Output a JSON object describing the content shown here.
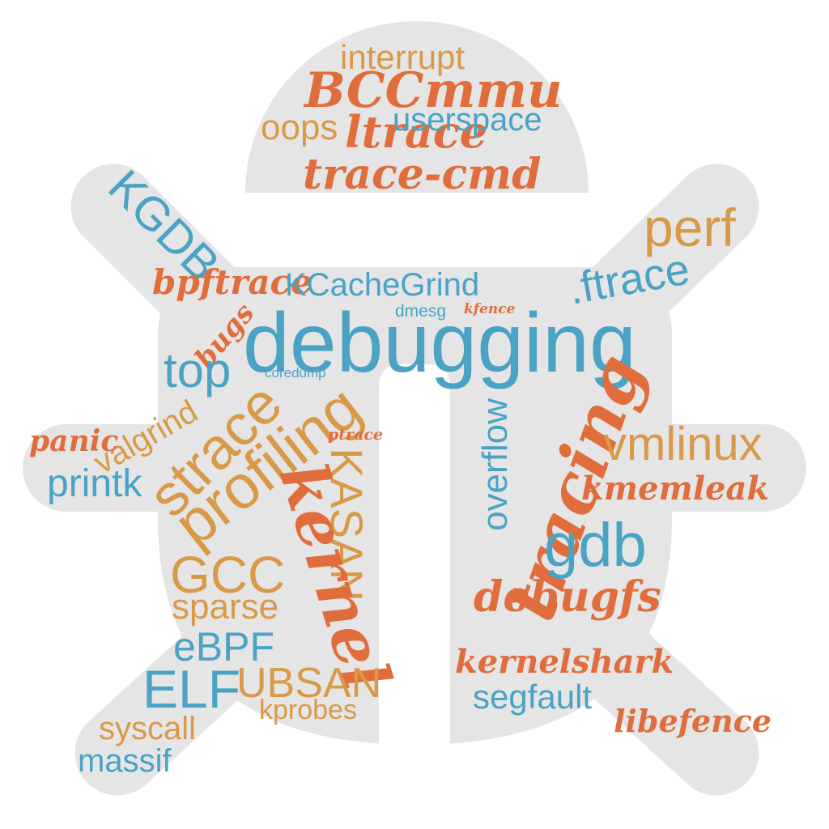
{
  "colors": {
    "silhouette": "#e5e5e5",
    "orange": "#e06d3b",
    "blue": "#4aa3c4",
    "tan": "#d89a48"
  },
  "words": {
    "interrupt": "interrupt",
    "bcc": "BCC",
    "mmu": "mmu",
    "oops": "oops",
    "ltrace": "ltrace",
    "userspace": "userspace",
    "trace_cmd": "trace-cmd",
    "kgdb": "KGDB",
    "perf": "perf",
    "bpftrace": "bpftrace",
    "kcachegrind": "KCacheGrind",
    "ftrace": ".ftrace",
    "dmesg": "dmesg",
    "kfence": "kfence",
    "debugging": "debugging",
    "bugs": "bugs",
    "top": "top",
    "coredump": "coredump",
    "valgrind": "valgrind",
    "strace": "strace",
    "profiling": "profiling",
    "ptrace": "ptrace",
    "panic": "panic",
    "printk": "printk",
    "kasan": "KASAN",
    "overflow": "overflow",
    "tracing": "tracing",
    "vmlinux": "vmlinux",
    "kmemleak": "kmemleak",
    "kernel": "kernel",
    "gdb": "gdb",
    "gcc": "GCC",
    "sparse": "sparse",
    "debugfs": "debugfs",
    "ebpf": "eBPF",
    "elf": "ELF",
    "ubsan": "UBSAN",
    "kernelshark": "kernelshark",
    "segfault": "segfault",
    "kprobes": "kprobes",
    "syscall": "syscall",
    "libefence": "libefence",
    "massif": "massif"
  }
}
